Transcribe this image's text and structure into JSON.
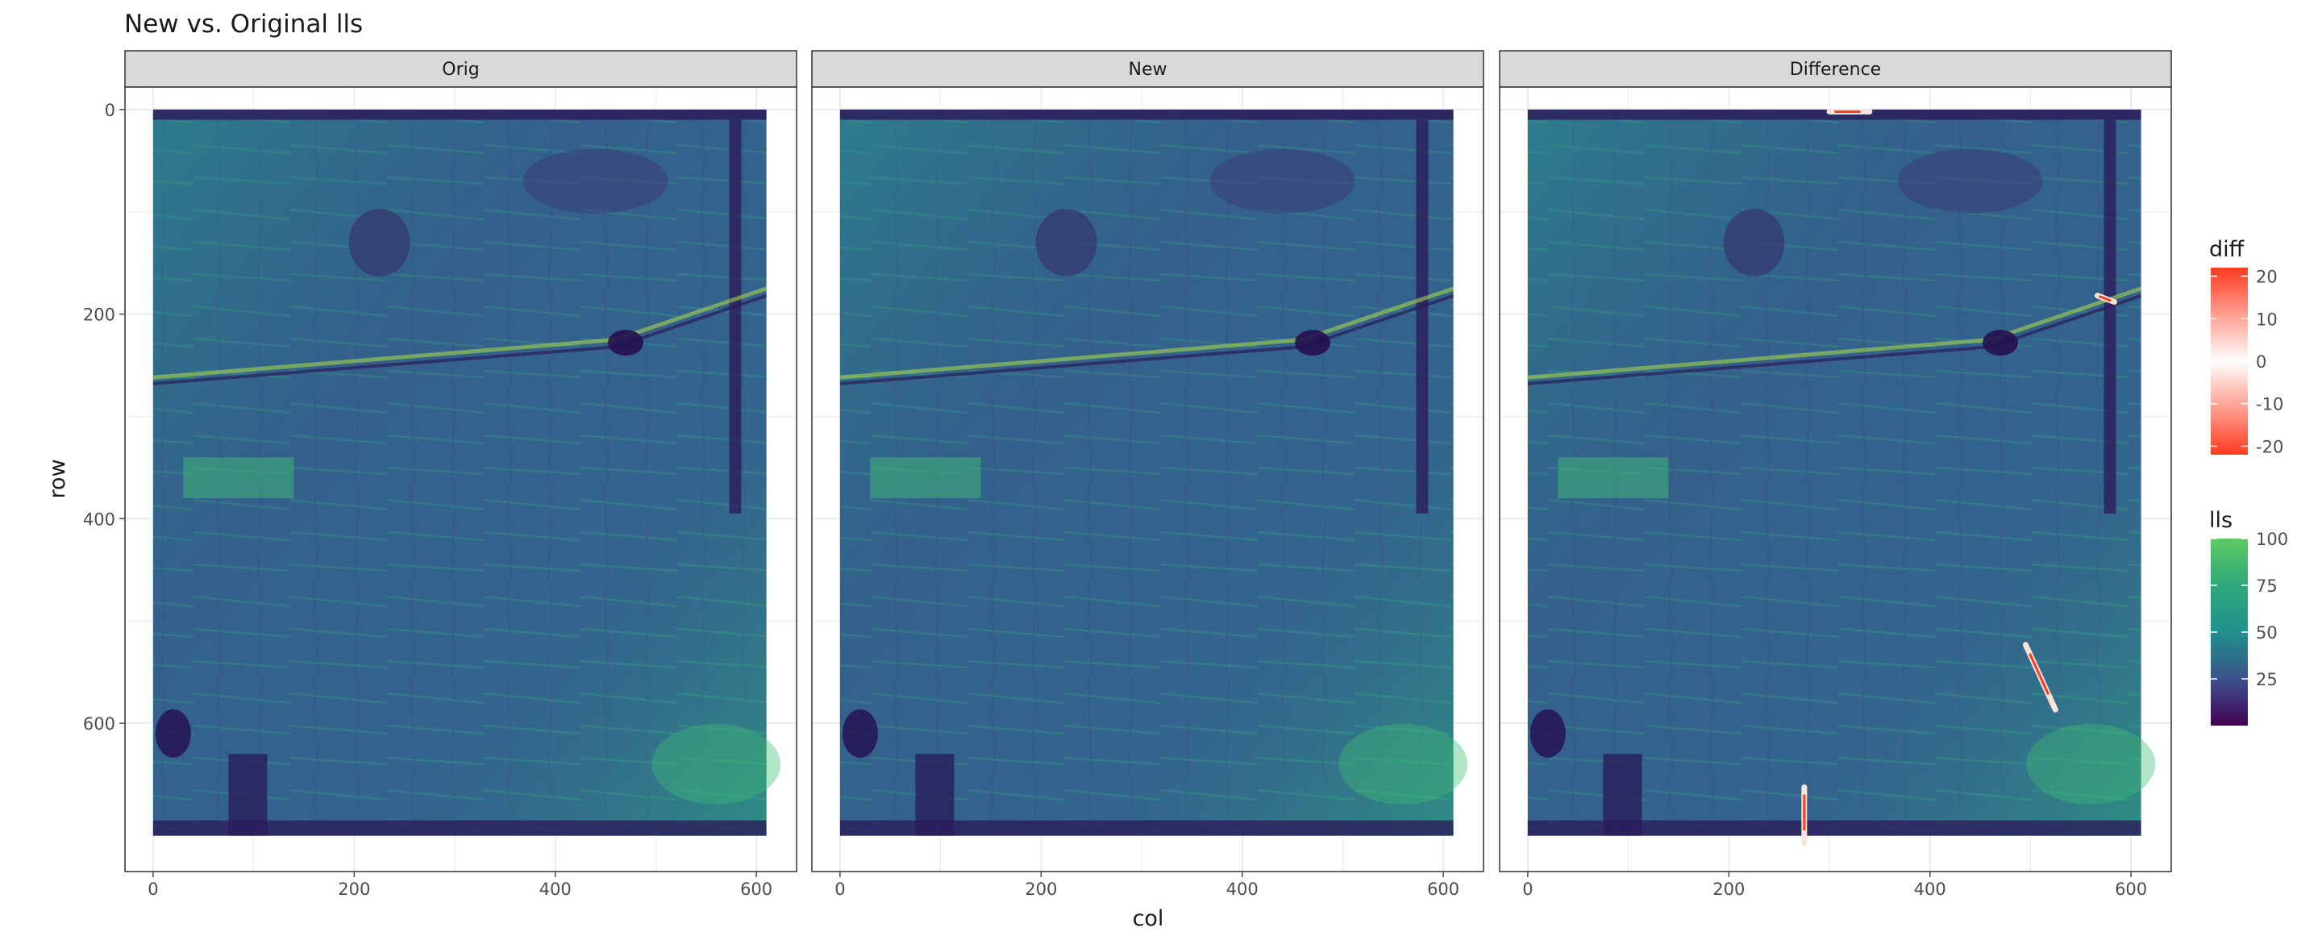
{
  "chart_data": {
    "type": "heatmap",
    "title": "New vs. Original lls",
    "xlabel": "col",
    "ylabel": "row",
    "xlim": [
      -28,
      640
    ],
    "ylim": [
      745,
      -22
    ],
    "y_reversed": true,
    "x_ticks": [
      0,
      200,
      400,
      600
    ],
    "y_ticks": [
      0,
      200,
      400,
      600
    ],
    "grid": true,
    "legend_position": "right",
    "facets": [
      {
        "label": "Orig"
      },
      {
        "label": "New"
      },
      {
        "label": "Difference"
      }
    ],
    "raster_extent": {
      "col": [
        0,
        610
      ],
      "row": [
        0,
        710
      ]
    },
    "legends": {
      "diff": {
        "title": "diff",
        "ticks": [
          20,
          10,
          0,
          -10,
          -20
        ],
        "range": [
          -22,
          22
        ],
        "colors": [
          "#ff3b1f",
          "#ffffff",
          "#ff3b1f"
        ]
      },
      "lls": {
        "title": "lls",
        "ticks": [
          100,
          75,
          50,
          25
        ],
        "range": [
          0,
          100
        ],
        "colors": [
          "#440154",
          "#3b528b",
          "#21918c",
          "#2ea97a",
          "#5ec962"
        ]
      }
    },
    "difference_features": [
      {
        "col": 275,
        "row": 690,
        "length": 55,
        "angle": 90
      },
      {
        "col": 510,
        "row": 555,
        "length": 70,
        "angle": 65
      },
      {
        "col": 575,
        "row": 185,
        "length": 18,
        "angle": 20
      },
      {
        "col": 320,
        "row": 2,
        "length": 40,
        "angle": 0
      }
    ]
  },
  "colors": {
    "panel_background": "#ffffff",
    "strip_fill": "#d9d9d9",
    "panel_border": "#333333",
    "grid": "#ebebeb",
    "text": "#1a1a1a",
    "axis_text": "#4d4d4d"
  }
}
